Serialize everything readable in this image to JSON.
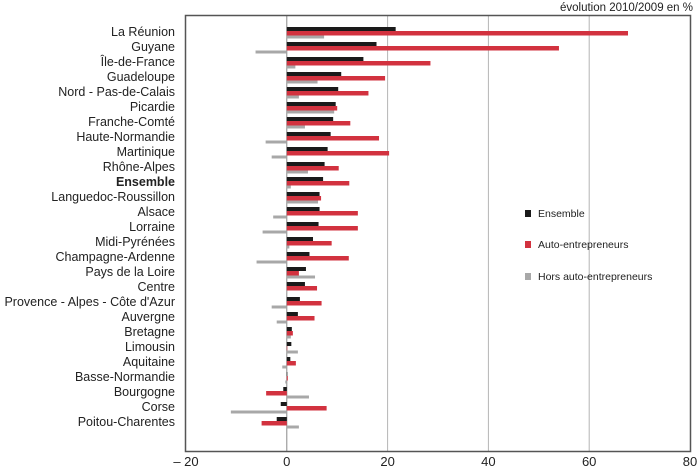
{
  "chart_data": {
    "type": "bar",
    "orientation": "horizontal",
    "title": "évolution 2010/2009 en %",
    "xlabel": "",
    "ylabel": "",
    "xlim": [
      -20,
      80
    ],
    "xticks": [
      -20,
      0,
      20,
      40,
      60,
      80
    ],
    "xtick_labels": [
      "– 20",
      "0",
      "20",
      "40",
      "60",
      "80"
    ],
    "grid": true,
    "legend_position": "right",
    "categories": [
      "La Réunion",
      "Guyane",
      "Île-de-France",
      "Guadeloupe",
      "Nord - Pas-de-Calais",
      "Picardie",
      "Franche-Comté",
      "Haute-Normandie",
      "Martinique",
      "Rhône-Alpes",
      "Ensemble",
      "Languedoc-Roussillon",
      "Alsace",
      "Lorraine",
      "Midi-Pyrénées",
      "Champagne-Ardenne",
      "Pays de la Loire",
      "Centre",
      "Provence - Alpes - Côte d'Azur",
      "Auvergne",
      "Bretagne",
      "Limousin",
      "Aquitaine",
      "Basse-Normandie",
      "Bourgogne",
      "Corse",
      "Poitou-Charentes"
    ],
    "bold_category": "Ensemble",
    "series": [
      {
        "name": "Ensemble",
        "color": "#1a1a1a",
        "values": [
          21.6,
          17.8,
          15.2,
          10.8,
          10.2,
          9.7,
          9.2,
          8.7,
          8.1,
          7.5,
          7.2,
          6.5,
          6.5,
          6.3,
          5.2,
          4.5,
          3.8,
          3.6,
          2.6,
          2.2,
          1.0,
          0.9,
          0.7,
          0.1,
          -0.7,
          -1.2,
          -2.0
        ]
      },
      {
        "name": "Auto-entrepreneurs",
        "color": "#d2323f",
        "values": [
          67.7,
          54.0,
          28.5,
          19.5,
          16.2,
          10.0,
          12.6,
          18.3,
          20.3,
          10.3,
          12.4,
          6.8,
          14.1,
          14.1,
          8.9,
          12.3,
          2.4,
          6.0,
          6.9,
          5.5,
          1.2,
          0.1,
          1.8,
          0.2,
          -4.1,
          7.9,
          -5.0
        ]
      },
      {
        "name": "Hors auto-entrepreneurs",
        "color": "#a8a8a8",
        "values": [
          7.4,
          -6.2,
          1.7,
          6.1,
          2.4,
          9.4,
          3.6,
          -4.2,
          -3.0,
          4.2,
          0.8,
          6.2,
          -2.7,
          -4.8,
          0.5,
          -6.0,
          5.6,
          0,
          -3.0,
          -2.0,
          0.8,
          2.2,
          -0.9,
          -0.3,
          4.4,
          -11.1,
          2.4
        ]
      }
    ]
  }
}
